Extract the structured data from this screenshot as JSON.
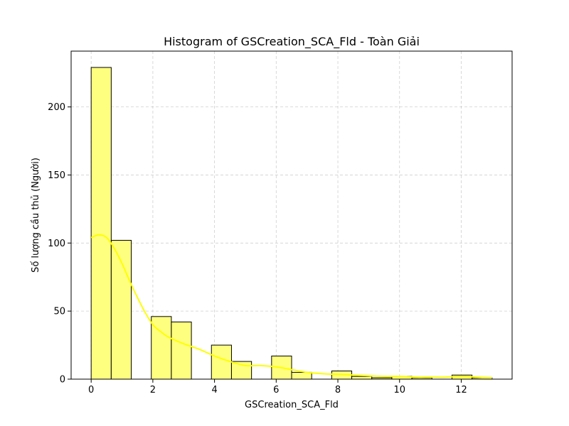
{
  "chart_data": {
    "type": "bar",
    "title": "Histogram of GSCreation_SCA_Fld - Toàn Giải",
    "xlabel": "GSCreation_SCA_Fld",
    "ylabel": "Số lượng cầu thủ (Người)",
    "xlim": [
      -0.65,
      13.65
    ],
    "ylim": [
      0,
      241
    ],
    "grid": true,
    "bar_color": "#ffff7f",
    "kde_color": "#ffff00",
    "bins": [
      {
        "x0": 0.0,
        "x1": 0.65,
        "count": 229
      },
      {
        "x0": 0.65,
        "x1": 1.3,
        "count": 102
      },
      {
        "x0": 1.3,
        "x1": 1.95,
        "count": 0
      },
      {
        "x0": 1.95,
        "x1": 2.6,
        "count": 46
      },
      {
        "x0": 2.6,
        "x1": 3.25,
        "count": 42
      },
      {
        "x0": 3.25,
        "x1": 3.9,
        "count": 0
      },
      {
        "x0": 3.9,
        "x1": 4.55,
        "count": 25
      },
      {
        "x0": 4.55,
        "x1": 5.2,
        "count": 13
      },
      {
        "x0": 5.2,
        "x1": 5.85,
        "count": 0
      },
      {
        "x0": 5.85,
        "x1": 6.5,
        "count": 17
      },
      {
        "x0": 6.5,
        "x1": 7.15,
        "count": 5
      },
      {
        "x0": 7.15,
        "x1": 7.8,
        "count": 0
      },
      {
        "x0": 7.8,
        "x1": 8.45,
        "count": 6
      },
      {
        "x0": 8.45,
        "x1": 9.1,
        "count": 2
      },
      {
        "x0": 9.1,
        "x1": 9.75,
        "count": 1
      },
      {
        "x0": 9.75,
        "x1": 10.4,
        "count": 2
      },
      {
        "x0": 10.4,
        "x1": 11.05,
        "count": 1
      },
      {
        "x0": 11.05,
        "x1": 11.7,
        "count": 0
      },
      {
        "x0": 11.7,
        "x1": 12.35,
        "count": 3
      },
      {
        "x0": 12.35,
        "x1": 13.0,
        "count": 1
      }
    ],
    "kde": {
      "x": [
        0,
        0.25,
        0.5,
        0.75,
        1,
        1.25,
        1.5,
        1.75,
        2,
        2.25,
        2.5,
        3,
        3.5,
        4,
        4.5,
        5,
        5.5,
        6,
        6.5,
        7,
        7.5,
        8,
        8.5,
        9,
        9.5,
        10,
        10.5,
        11,
        11.5,
        12,
        12.5,
        13
      ],
      "y": [
        104,
        106,
        104,
        96,
        85,
        72,
        60,
        49,
        40,
        35,
        31,
        26,
        22,
        17,
        13,
        10,
        10,
        9,
        7,
        5,
        4,
        3.5,
        3,
        2.5,
        2,
        2,
        1.5,
        1.5,
        1.5,
        2,
        1.5,
        1
      ]
    },
    "xticks": [
      {
        "value": 0,
        "label": "0"
      },
      {
        "value": 2,
        "label": "2"
      },
      {
        "value": 4,
        "label": "4"
      },
      {
        "value": 6,
        "label": "6"
      },
      {
        "value": 8,
        "label": "8"
      },
      {
        "value": 10,
        "label": "10"
      },
      {
        "value": 12,
        "label": "12"
      }
    ],
    "yticks": [
      {
        "value": 0,
        "label": "0"
      },
      {
        "value": 50,
        "label": "50"
      },
      {
        "value": 100,
        "label": "100"
      },
      {
        "value": 150,
        "label": "150"
      },
      {
        "value": 200,
        "label": "200"
      }
    ]
  }
}
